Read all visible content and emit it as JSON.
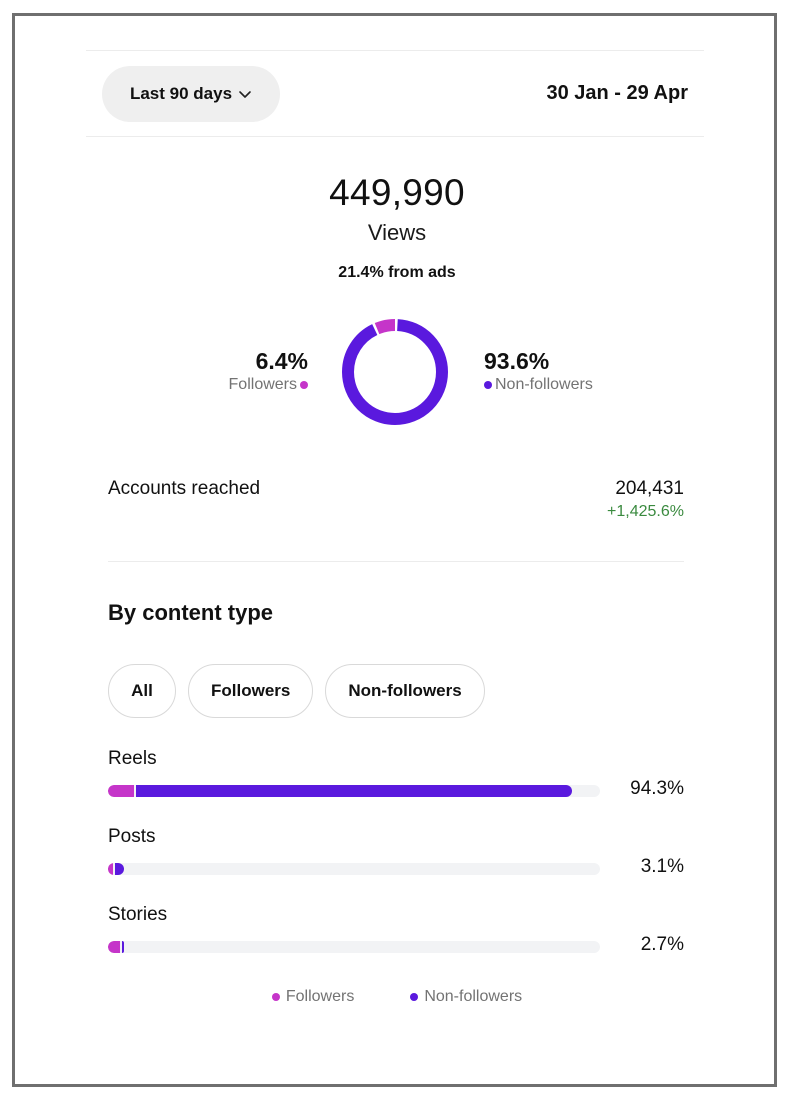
{
  "colors": {
    "followers": "#c535c9",
    "non_followers": "#5a19de",
    "track": "#f2f3f5",
    "positive": "#3a8a3f"
  },
  "header": {
    "range_label": "Last 90 days",
    "date_range": "30 Jan - 29 Apr"
  },
  "summary": {
    "total": "449,990",
    "metric_label": "Views",
    "ads_note": "21.4% from ads"
  },
  "breakdown": {
    "followers": {
      "pct": "6.4%",
      "label": "Followers",
      "value": 6.4
    },
    "non_followers": {
      "pct": "93.6%",
      "label": "Non-followers",
      "value": 93.6
    }
  },
  "reach": {
    "label": "Accounts reached",
    "value": "204,431",
    "change": "+1,425.6%"
  },
  "content_type": {
    "title": "By content type",
    "filters": [
      {
        "label": "All",
        "active": true
      },
      {
        "label": "Followers",
        "active": false
      },
      {
        "label": "Non-followers",
        "active": false
      }
    ],
    "rows": [
      {
        "label": "Reels",
        "pct_text": "94.3%",
        "total": 94.3,
        "followers_share": 0.055
      },
      {
        "label": "Posts",
        "pct_text": "3.1%",
        "total": 3.1,
        "followers_share": 0.3
      },
      {
        "label": "Stories",
        "pct_text": "2.7%",
        "total": 2.7,
        "followers_share": 0.75
      }
    ]
  },
  "legend": {
    "followers": "Followers",
    "non_followers": "Non-followers"
  }
}
